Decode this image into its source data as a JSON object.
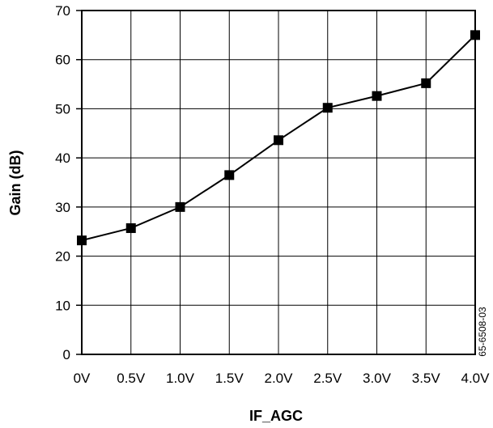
{
  "chart_data": {
    "type": "line",
    "title": "",
    "xlabel": "IF_AGC",
    "ylabel": "Gain (dB)",
    "categories": [
      "0V",
      "0.5V",
      "1.0V",
      "1.5V",
      "2.0V",
      "2.5V",
      "3.0V",
      "3.5V",
      "4.0V"
    ],
    "x": [
      0,
      0.5,
      1.0,
      1.5,
      2.0,
      2.5,
      3.0,
      3.5,
      4.0
    ],
    "xlim": [
      0,
      4.0
    ],
    "ylim": [
      0,
      70
    ],
    "yticks": [
      0,
      10,
      20,
      30,
      40,
      50,
      60,
      70
    ],
    "grid": true,
    "legend": "none",
    "marker": "square",
    "series": [
      {
        "values": [
          23.2,
          25.7,
          30.0,
          36.5,
          43.6,
          50.2,
          52.6,
          55.2,
          65.0
        ]
      }
    ],
    "colors": {
      "line": "#000000",
      "marker": "#000000",
      "grid": "#000000"
    }
  },
  "figure_id": "65-6508-03"
}
